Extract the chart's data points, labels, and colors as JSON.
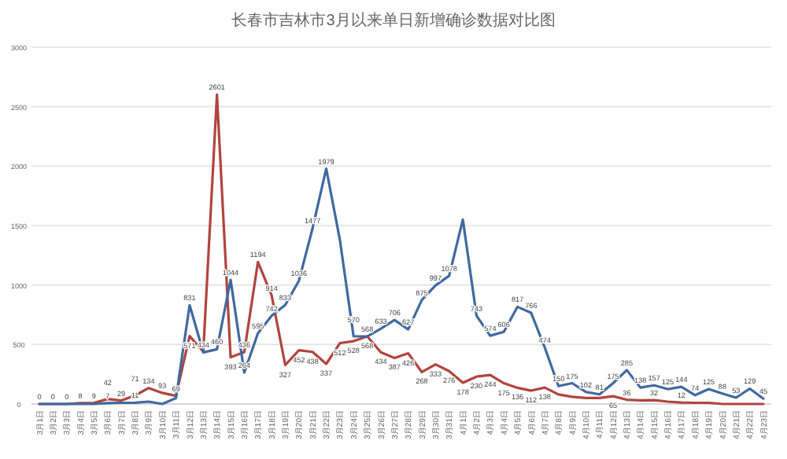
{
  "chart_data": {
    "type": "line",
    "title": "长春市吉林市3月以来单日新增确诊数据对比图",
    "categories": [
      "3月1日",
      "3月2日",
      "3月3日",
      "3月4日",
      "3月5日",
      "3月6日",
      "3月7日",
      "3月8日",
      "3月9日",
      "3月10日",
      "3月11日",
      "3月12日",
      "3月13日",
      "3月14日",
      "3月15日",
      "3月16日",
      "3月17日",
      "3月18日",
      "3月19日",
      "3月20日",
      "3月21日",
      "3月22日",
      "3月23日",
      "3月24日",
      "3月25日",
      "3月26日",
      "3月27日",
      "3月28日",
      "3月29日",
      "3月30日",
      "3月31日",
      "4月1日",
      "4月2日",
      "4月3日",
      "4月4日",
      "4月5日",
      "4月6日",
      "4月7日",
      "4月8日",
      "4月9日",
      "4月10日",
      "4月11日",
      "4月12日",
      "4月13日",
      "4月14日",
      "4月15日",
      "4月16日",
      "4月17日",
      "4月18日",
      "4月19日",
      "4月20日",
      "4月21日",
      "4月22日",
      "4月23日"
    ],
    "ylim": [
      0,
      3000
    ],
    "yticks": [
      0,
      500,
      1000,
      1500,
      2000,
      2500,
      3000
    ],
    "grid": "y",
    "marker": "none",
    "line_style": "solid",
    "series": [
      {
        "color": "#b1443f",
        "values": [
          0,
          0,
          0,
          8,
          9,
          42,
          29,
          71,
          134,
          93,
          69,
          571,
          440,
          2601,
          393,
          436,
          1194,
          914,
          327,
          452,
          438,
          337,
          512,
          528,
          568,
          434,
          387,
          426,
          268,
          333,
          276,
          178,
          230,
          244,
          175,
          136,
          112,
          138,
          80,
          60,
          50,
          50,
          65,
          36,
          30,
          32,
          20,
          12,
          10,
          10,
          0,
          0,
          0,
          0
        ],
        "value_labels": [
          "0",
          "0",
          "0",
          "8",
          "9",
          "42",
          "29",
          "71",
          "134",
          "93",
          "69",
          "571",
          null,
          "2601",
          "393",
          "436",
          "1194",
          "914",
          "327",
          "452",
          "438",
          "337",
          "512",
          "528",
          "568",
          "434",
          "387",
          "426",
          "268",
          "333",
          "276",
          "178",
          "230",
          "244",
          "175",
          "136",
          "112",
          "138",
          null,
          null,
          null,
          null,
          "65",
          "36",
          null,
          "32",
          null,
          "12",
          null,
          null,
          null,
          null,
          null,
          null
        ]
      },
      {
        "color": "#40699f",
        "values": [
          0,
          0,
          0,
          0,
          0,
          7,
          10,
          11,
          20,
          0,
          50,
          831,
          434,
          460,
          1044,
          264,
          595,
          742,
          833,
          1036,
          1477,
          1979,
          1380,
          570,
          568,
          633,
          706,
          627,
          875,
          997,
          1078,
          1550,
          743,
          574,
          606,
          817,
          766,
          474,
          150,
          175,
          102,
          81,
          175,
          285,
          138,
          157,
          125,
          144,
          74,
          125,
          88,
          53,
          129,
          45
        ],
        "value_labels": [
          null,
          null,
          null,
          null,
          null,
          "7",
          null,
          "11",
          null,
          null,
          null,
          "831",
          "434",
          "460",
          "1044",
          "264",
          "595",
          "742",
          "833",
          "1036",
          "1477",
          "1979",
          null,
          "570",
          "568",
          "633",
          "706",
          "627",
          "875",
          "997",
          "1078",
          null,
          "743",
          "574",
          "606",
          "817",
          "766",
          "474",
          "150",
          "175",
          "102",
          "81",
          "175",
          "285",
          "138",
          "157",
          "125",
          "144",
          "74",
          "125",
          "88",
          "53",
          "129",
          "45"
        ]
      }
    ]
  }
}
